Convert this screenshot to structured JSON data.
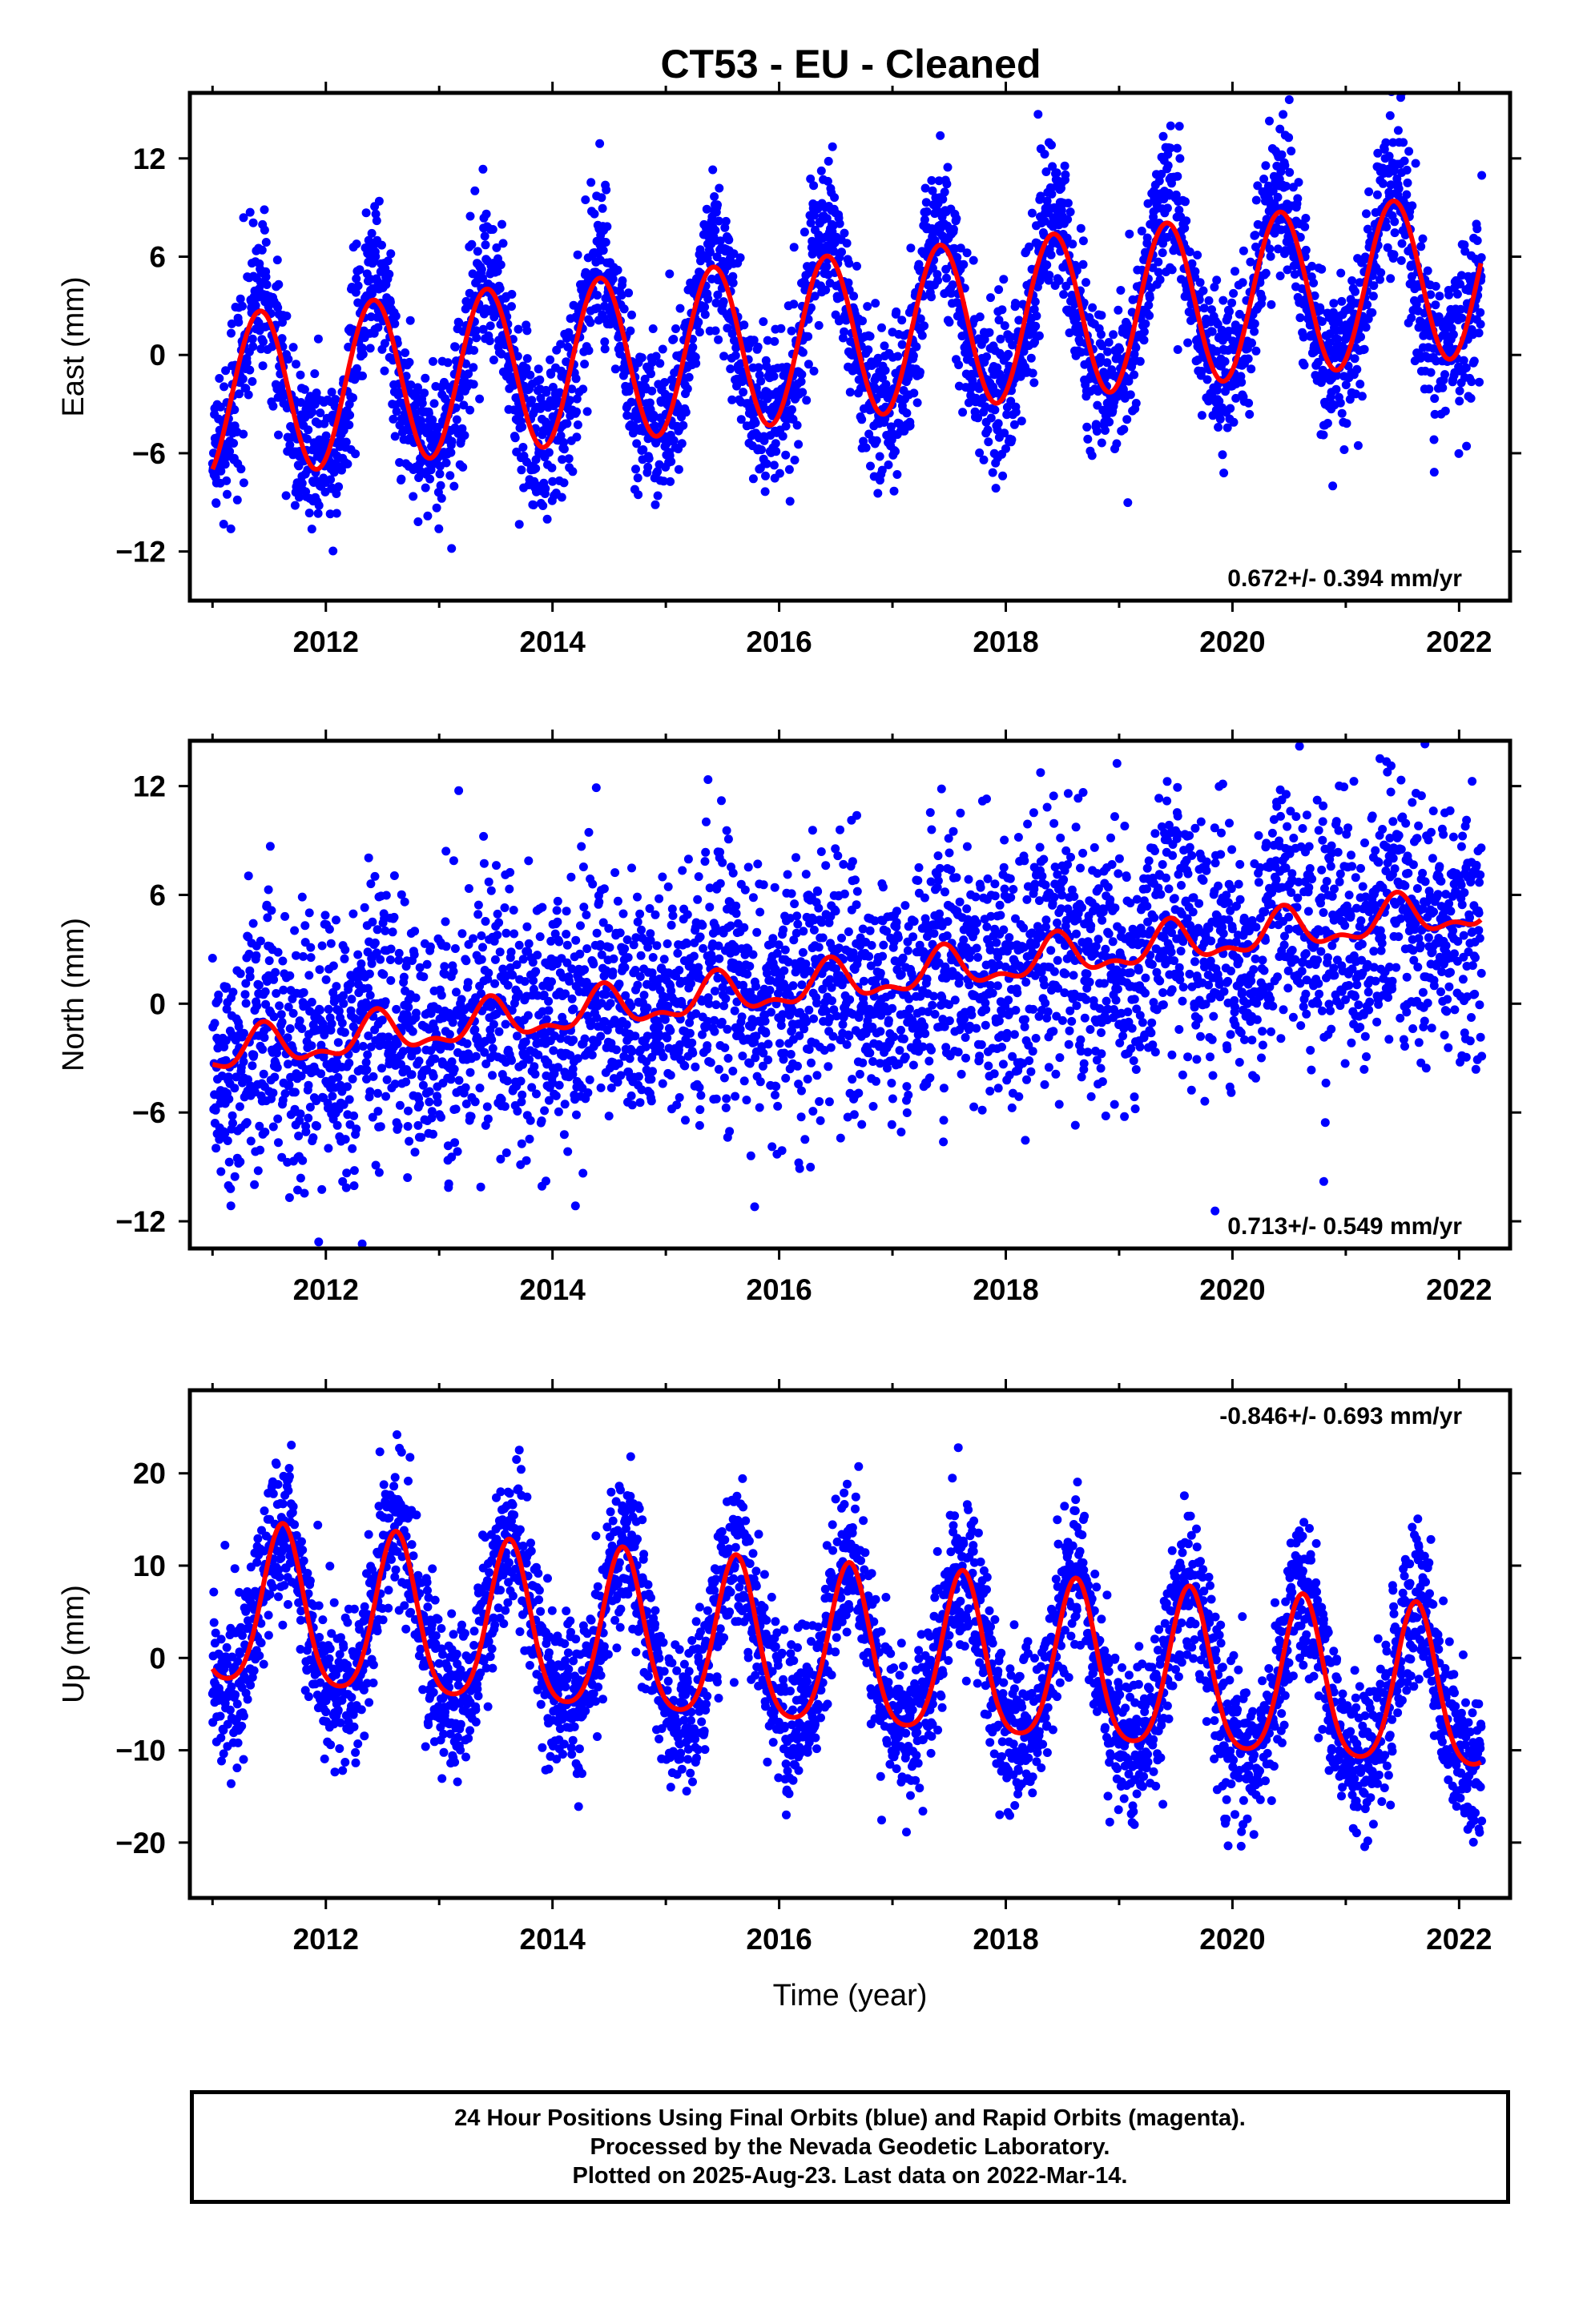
{
  "title": "CT53  - EU - Cleaned",
  "footer": {
    "line1": "24 Hour Positions Using Final Orbits (blue) and Rapid Orbits (magenta).",
    "line2": "Processed by the Nevada Geodetic Laboratory.",
    "line3": "Plotted on 2025-Aug-23. Last data on 2022-Mar-14."
  },
  "colors": {
    "points": "#0000ff",
    "fit": "#ff0000",
    "axis": "#000000"
  },
  "chart_data": [
    {
      "type": "scatter",
      "panel": "east",
      "ylabel": "East (mm)",
      "xlabel": "",
      "rate_text": "0.672+/- 0.394 mm/yr",
      "rate_position": "bottom-right",
      "xlim": [
        2010.8,
        2022.45
      ],
      "ylim": [
        -15,
        16
      ],
      "xticks": [
        2012,
        2014,
        2016,
        2018,
        2020,
        2022
      ],
      "yticks": [
        -12,
        -6,
        0,
        6,
        12
      ],
      "series": [
        {
          "kind": "points",
          "start": 2011.0,
          "end": 2022.2,
          "seasonal_amp": 5.2,
          "semi_amp": 1.0,
          "peak": 2011.42,
          "offset": -2.6,
          "trend": 0.672,
          "noise": 2.4
        },
        {
          "kind": "fit",
          "start": 2011.0,
          "end": 2022.2,
          "seasonal_amp": 5.0,
          "semi_amp": 0.0,
          "peak": 2011.42,
          "offset": -2.6,
          "trend": 0.672
        }
      ]
    },
    {
      "type": "scatter",
      "panel": "north",
      "ylabel": "North (mm)",
      "xlabel": "",
      "rate_text": "0.713+/- 0.549 mm/yr",
      "rate_position": "bottom-right",
      "xlim": [
        2010.8,
        2022.45
      ],
      "ylim": [
        -13.5,
        14.5
      ],
      "xticks": [
        2012,
        2014,
        2016,
        2018,
        2020,
        2022
      ],
      "yticks": [
        -12,
        -6,
        0,
        6,
        12
      ],
      "series": [
        {
          "kind": "points",
          "start": 2011.0,
          "end": 2022.2,
          "seasonal_amp": 1.0,
          "semi_amp": 0.5,
          "peak": 2012.45,
          "offset": -2.8,
          "trend": 0.713,
          "noise": 3.6
        },
        {
          "kind": "fit",
          "start": 2011.0,
          "end": 2022.2,
          "seasonal_amp": 1.0,
          "semi_amp": 0.5,
          "peak": 2012.45,
          "offset": -2.8,
          "trend": 0.713
        }
      ]
    },
    {
      "type": "scatter",
      "panel": "up",
      "ylabel": "Up (mm)",
      "xlabel": "Time (year)",
      "rate_text": "-0.846+/- 0.693 mm/yr",
      "rate_position": "top-right",
      "xlim": [
        2010.8,
        2022.45
      ],
      "ylim": [
        -26,
        29
      ],
      "xticks": [
        2012,
        2014,
        2016,
        2018,
        2020,
        2022
      ],
      "yticks": [
        -20,
        -10,
        0,
        10,
        20
      ],
      "series": [
        {
          "kind": "points",
          "start": 2011.0,
          "end": 2022.2,
          "seasonal_amp": 9.0,
          "semi_amp": 1.5,
          "peak": 2011.62,
          "offset": 5.0,
          "trend": -0.846,
          "noise": 4.2
        },
        {
          "kind": "fit",
          "start": 2011.0,
          "end": 2022.2,
          "seasonal_amp": 8.6,
          "semi_amp": 1.5,
          "peak": 2011.62,
          "offset": 5.0,
          "trend": -0.846
        }
      ]
    }
  ]
}
